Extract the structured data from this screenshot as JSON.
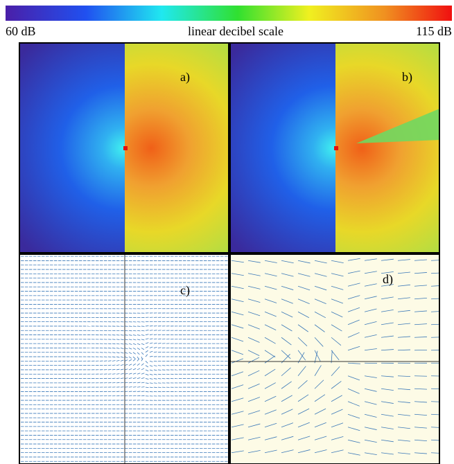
{
  "colorbar": {
    "min_label": "60 dB",
    "title": "linear decibel scale",
    "max_label": "115 dB"
  },
  "panels": [
    {
      "label": "a)"
    },
    {
      "label": "b)"
    },
    {
      "label": "c)"
    },
    {
      "label": "d)"
    }
  ]
}
